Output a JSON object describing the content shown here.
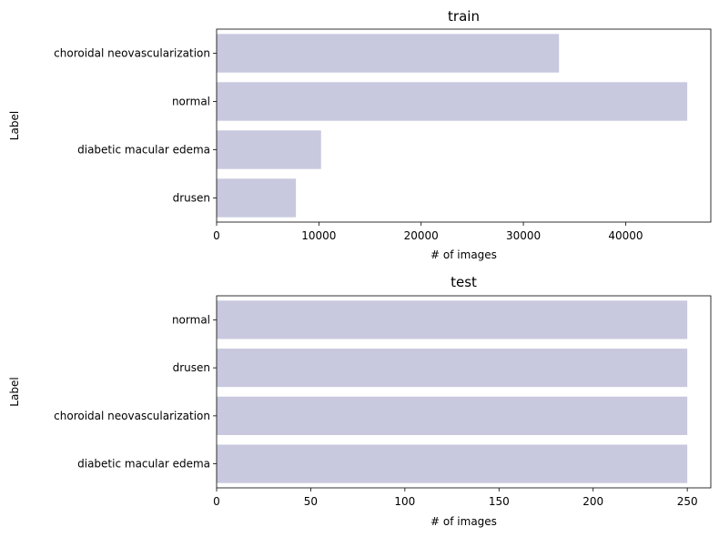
{
  "chart_data": [
    {
      "type": "bar",
      "orientation": "horizontal",
      "title": "train",
      "xlabel": "# of images",
      "ylabel": "Label",
      "categories": [
        "choroidal neovascularization",
        "normal",
        "diabetic macular edema",
        "drusen"
      ],
      "values": [
        33484,
        46026,
        10213,
        7754
      ],
      "xlim": [
        0,
        48330
      ],
      "xticks": [
        0,
        10000,
        20000,
        30000,
        40000
      ],
      "grid": false,
      "bar_color": "#c8c9de"
    },
    {
      "type": "bar",
      "orientation": "horizontal",
      "title": "test",
      "xlabel": "# of images",
      "ylabel": "Label",
      "categories": [
        "normal",
        "drusen",
        "choroidal neovascularization",
        "diabetic macular edema"
      ],
      "values": [
        250,
        250,
        250,
        250
      ],
      "xlim": [
        0,
        262.5
      ],
      "xticks": [
        0,
        50,
        100,
        150,
        200,
        250
      ],
      "grid": false,
      "bar_color": "#c8c9de"
    }
  ]
}
